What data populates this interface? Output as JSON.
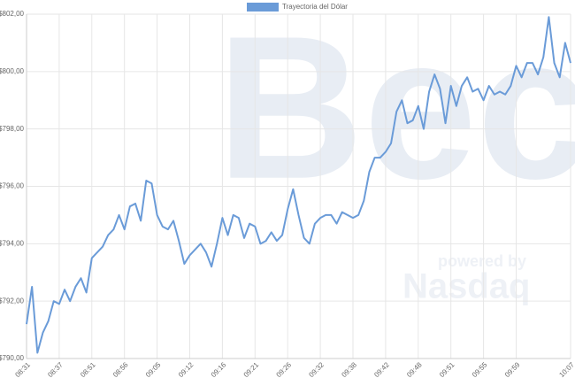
{
  "chart_data": {
    "type": "line",
    "legend_position": "top",
    "grid": true,
    "watermark": {
      "brand": "Bec",
      "tagline": "powered by",
      "partner": "Nasdaq"
    },
    "categories": [
      "08:31",
      null,
      null,
      null,
      null,
      null,
      "08:37",
      null,
      null,
      null,
      null,
      null,
      "08:51",
      null,
      null,
      null,
      null,
      null,
      "08:56",
      null,
      null,
      null,
      null,
      null,
      "09:05",
      null,
      null,
      null,
      null,
      null,
      "09:12",
      null,
      null,
      null,
      null,
      null,
      "09:16",
      null,
      null,
      null,
      null,
      null,
      "09:21",
      null,
      null,
      null,
      null,
      null,
      "09:26",
      null,
      null,
      null,
      null,
      null,
      "09:32",
      null,
      null,
      null,
      null,
      null,
      "09:38",
      null,
      null,
      null,
      null,
      null,
      "09:42",
      null,
      null,
      null,
      null,
      null,
      "09:48",
      null,
      null,
      null,
      null,
      null,
      "09:51",
      null,
      null,
      null,
      null,
      null,
      "09:55",
      null,
      null,
      null,
      null,
      null,
      "09:59",
      null,
      null,
      null,
      null,
      null,
      null,
      null,
      null,
      null,
      "10:07"
    ],
    "series": [
      {
        "name": "Trayectoria del Dólar",
        "color": "#6a9bd8",
        "values": [
          791.2,
          792.5,
          790.2,
          790.9,
          791.3,
          792.0,
          791.9,
          792.4,
          792.0,
          792.5,
          792.8,
          792.3,
          793.5,
          793.7,
          793.9,
          794.3,
          794.5,
          795.0,
          794.5,
          795.3,
          795.4,
          794.8,
          796.2,
          796.1,
          795.0,
          794.6,
          794.5,
          794.8,
          794.1,
          793.3,
          793.6,
          793.8,
          794.0,
          793.7,
          793.2,
          794.0,
          794.9,
          794.3,
          795.0,
          794.9,
          794.2,
          794.7,
          794.6,
          794.0,
          794.1,
          794.4,
          794.1,
          794.3,
          795.2,
          795.9,
          795.0,
          794.2,
          794.0,
          794.7,
          794.9,
          795.0,
          795.0,
          794.7,
          795.1,
          795.0,
          794.9,
          795.0,
          795.5,
          796.5,
          797.0,
          797.0,
          797.2,
          797.5,
          798.6,
          799.0,
          798.2,
          798.3,
          798.8,
          798.0,
          799.3,
          799.9,
          799.4,
          798.2,
          799.5,
          798.8,
          799.5,
          799.8,
          799.3,
          799.4,
          799.0,
          799.5,
          799.2,
          799.3,
          799.2,
          799.5,
          800.2,
          799.8,
          800.3,
          800.3,
          799.9,
          800.5,
          801.9,
          800.3,
          799.8,
          801.0,
          800.3
        ]
      }
    ],
    "ylim": [
      790,
      802
    ],
    "yticks": [
      {
        "value": 790,
        "label": "$790,00"
      },
      {
        "value": 792,
        "label": "$792,00"
      },
      {
        "value": 794,
        "label": "$794,00"
      },
      {
        "value": 796,
        "label": "$796,00"
      },
      {
        "value": 798,
        "label": "$798,00"
      },
      {
        "value": 800,
        "label": "$800,00"
      },
      {
        "value": 802,
        "label": "$802,00"
      }
    ]
  }
}
